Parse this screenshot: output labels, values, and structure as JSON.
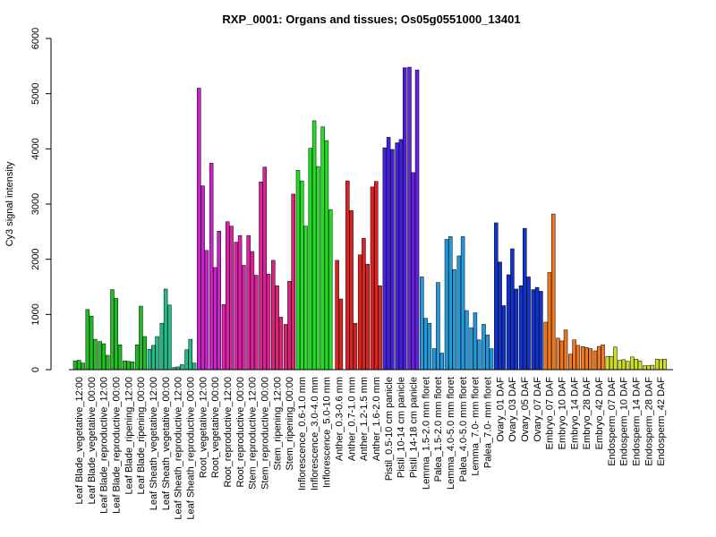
{
  "chart_data": {
    "type": "bar",
    "title": "RXP_0001: Organs and tissues; Os05g0551000_13401",
    "ylabel": "Cy3 signal intensity",
    "xlabel": "",
    "ylim": [
      0,
      6000
    ],
    "yticks": [
      0,
      1000,
      2000,
      3000,
      4000,
      5000,
      6000
    ],
    "grid": false,
    "groups": [
      {
        "label": "Leaf Blade_vegetative_12:00",
        "color": "#22bb22",
        "values": [
          160,
          170,
          120
        ]
      },
      {
        "label": "Leaf Blade_vegetative_00:00",
        "color": "#22bb22",
        "values": [
          1090,
          970,
          550
        ]
      },
      {
        "label": "Leaf Blade_reproductive_12:00",
        "color": "#22bb22",
        "values": [
          510,
          470,
          260
        ]
      },
      {
        "label": "Leaf Blade_reproductive_00:00",
        "color": "#22bb22",
        "values": [
          1450,
          1290,
          450
        ]
      },
      {
        "label": "Leaf Blade_ripening_12:00",
        "color": "#22bb22",
        "values": [
          160,
          150,
          140
        ]
      },
      {
        "label": "Leaf Blade_ripening_00:00",
        "color": "#22bb22",
        "values": [
          450,
          1150,
          600
        ]
      },
      {
        "label": "Leaf Sheath_vegetative_12:00",
        "color": "#22bb88",
        "values": [
          370,
          440,
          600
        ]
      },
      {
        "label": "Leaf Sheath_vegetative_00:00",
        "color": "#22bb88",
        "values": [
          840,
          1460,
          1170
        ]
      },
      {
        "label": "Leaf Sheath_reproductive_12:00",
        "color": "#22bb88",
        "values": [
          40,
          50,
          90
        ]
      },
      {
        "label": "Leaf Sheath_reproductive_00:00",
        "color": "#22bb88",
        "values": [
          360,
          550,
          120
        ]
      },
      {
        "label": "Root_vegetative_12:00",
        "color": "#cc22cc",
        "values": [
          5100,
          3330,
          2160
        ]
      },
      {
        "label": "Root_vegetative_00:00",
        "color": "#cc22cc",
        "values": [
          3740,
          1850,
          2510
        ]
      },
      {
        "label": "Root_reproductive_12:00",
        "color": "#dd22aa",
        "values": [
          1180,
          2680,
          2600
        ]
      },
      {
        "label": "Root_reproductive_00:00",
        "color": "#dd22aa",
        "values": [
          2310,
          2430,
          1890
        ]
      },
      {
        "label": "Stem_reproductive_12:00",
        "color": "#dd2299",
        "values": [
          2430,
          2140,
          1710
        ]
      },
      {
        "label": "Stem_reproductive_00:00",
        "color": "#dd2299",
        "values": [
          3400,
          3670,
          1730
        ]
      },
      {
        "label": "Stem_ripening_12:00",
        "color": "#dd2277",
        "values": [
          1980,
          1520,
          950
        ]
      },
      {
        "label": "Stem_ripening_00:00",
        "color": "#dd2277",
        "values": [
          820,
          1600,
          3180
        ]
      },
      {
        "label": "Inflorescence_0.6-1.0 mm",
        "color": "#22dd22",
        "values": [
          3610,
          3420,
          2600
        ]
      },
      {
        "label": "Inflorescence_3.0-4.0 mm",
        "color": "#22dd22",
        "values": [
          4010,
          4510,
          3680
        ]
      },
      {
        "label": "Inflorescence_5.0-10 mm",
        "color": "#22dd22",
        "values": [
          4400,
          4150,
          2900
        ]
      },
      {
        "label": "Anther_0.3-0.6 mm",
        "color": "#dd2222",
        "values": [
          1980,
          1280
        ]
      },
      {
        "label": "Anther_0.7-1.0 mm",
        "color": "#dd2222",
        "values": [
          3420,
          2880,
          840
        ]
      },
      {
        "label": "Anther_1.2-1.5 mm",
        "color": "#dd2222",
        "values": [
          2080,
          2380,
          1910
        ]
      },
      {
        "label": "Anther_1.6-2.0 mm",
        "color": "#dd2222",
        "values": [
          3310,
          3410,
          1520
        ]
      },
      {
        "label": "Pistil_0.5-10 cm panicle",
        "color": "#4422dd",
        "values": [
          4020,
          4210,
          3990
        ]
      },
      {
        "label": "Pistil_10-14 cm panicle",
        "color": "#4422dd",
        "values": [
          4110,
          4170,
          5470
        ]
      },
      {
        "label": "Pistil_14-18 cm panicle",
        "color": "#6622dd",
        "values": [
          5480,
          3570,
          5430
        ]
      },
      {
        "label": "Lemma_1.5-2.0 mm floret",
        "color": "#2299dd",
        "values": [
          1680,
          930,
          840
        ]
      },
      {
        "label": "Palea_1.5-2.0 mm floret",
        "color": "#2299dd",
        "values": [
          380,
          1580,
          300
        ]
      },
      {
        "label": "Lemma_4.0-5.0 mm floret",
        "color": "#2299dd",
        "values": [
          2360,
          2410,
          1810
        ]
      },
      {
        "label": "Palea_4.0-5.0 mm floret",
        "color": "#2299dd",
        "values": [
          2060,
          2410,
          1070
        ]
      },
      {
        "label": "Lemma_7.0- mm floret",
        "color": "#2299dd",
        "values": [
          760,
          1030,
          540
        ]
      },
      {
        "label": "Palea_7.0- mm floret",
        "color": "#2299dd",
        "values": [
          820,
          630,
          380
        ]
      },
      {
        "label": "Ovary_01 DAF",
        "color": "#1133cc",
        "values": [
          2660,
          1950,
          1160
        ]
      },
      {
        "label": "Ovary_03 DAF",
        "color": "#1133cc",
        "values": [
          1720,
          2190,
          1460
        ]
      },
      {
        "label": "Ovary_05 DAF",
        "color": "#1133cc",
        "values": [
          1520,
          2560,
          1680
        ]
      },
      {
        "label": "Ovary_07 DAF",
        "color": "#1133cc",
        "values": [
          1450,
          1490,
          1420
        ]
      },
      {
        "label": "Embryo_07 DAF",
        "color": "#ee7722",
        "values": [
          860,
          1760,
          2820
        ]
      },
      {
        "label": "Embryo_10 DAF",
        "color": "#ee7722",
        "values": [
          570,
          520,
          720
        ]
      },
      {
        "label": "Embryo_14 DAF",
        "color": "#ee7722",
        "values": [
          280,
          540,
          440
        ]
      },
      {
        "label": "Embryo_28 DAF",
        "color": "#ee7722",
        "values": [
          420,
          400,
          380
        ]
      },
      {
        "label": "Embryo_42 DAF",
        "color": "#ee7722",
        "values": [
          340,
          420,
          450
        ]
      },
      {
        "label": "Endosperm_07 DAF",
        "color": "#ccdd22",
        "values": [
          240,
          240,
          410
        ]
      },
      {
        "label": "Endosperm_10 DAF",
        "color": "#ccdd22",
        "values": [
          170,
          180,
          150
        ]
      },
      {
        "label": "Endosperm_14 DAF",
        "color": "#ccdd22",
        "values": [
          230,
          190,
          160
        ]
      },
      {
        "label": "Endosperm_28 DAF",
        "color": "#ccdd22",
        "values": [
          70,
          70,
          80
        ]
      },
      {
        "label": "Endosperm_42 DAF",
        "color": "#ccdd22",
        "values": [
          190,
          180,
          190
        ]
      }
    ]
  }
}
